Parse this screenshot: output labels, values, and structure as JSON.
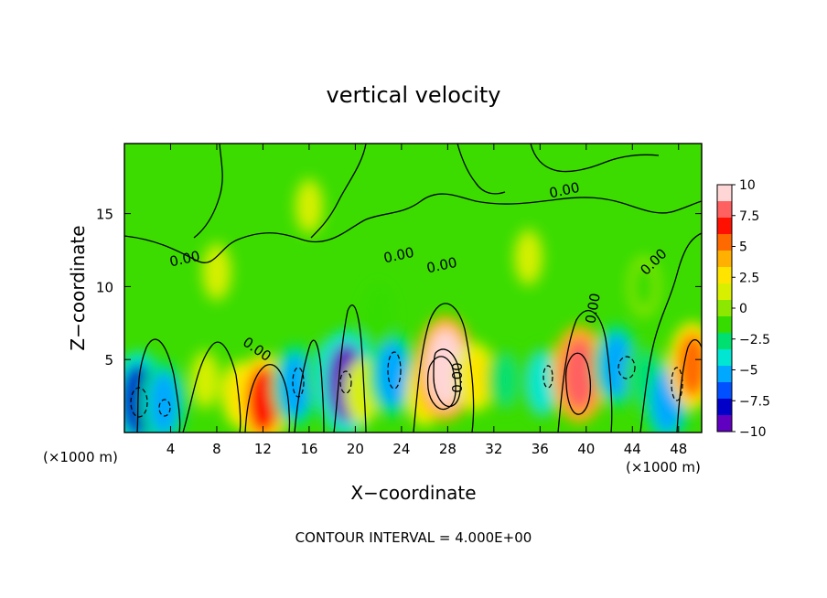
{
  "chart_data": {
    "type": "heatmap",
    "title": "vertical velocity",
    "xlabel": "X−coordinate",
    "ylabel": "Z−coordinate",
    "x_unit_left": "(×1000 m)",
    "x_unit_right": "(×1000 m)",
    "xlim": [
      0,
      50
    ],
    "ylim": [
      0,
      19.8
    ],
    "x_ticks": [
      "4",
      "8",
      "12",
      "16",
      "20",
      "24",
      "28",
      "32",
      "36",
      "40",
      "44",
      "48"
    ],
    "y_ticks": [
      "5",
      "10",
      "15"
    ],
    "colorbar": {
      "range": [
        -10,
        10
      ],
      "tick_labels": [
        "10",
        "7.5",
        "5",
        "2.5",
        "0",
        "−2.5",
        "−5",
        "−7.5",
        "−10"
      ],
      "colors": [
        "#ffd6d6",
        "#ff6060",
        "#ff1000",
        "#ff6a00",
        "#ffb000",
        "#ffe400",
        "#d8f000",
        "#8ce800",
        "#36dc00",
        "#00e070",
        "#00e6d2",
        "#00a8ff",
        "#0050ff",
        "#0000c8",
        "#6000c0"
      ]
    },
    "contour_labels": [
      "0.00",
      "0.00",
      "0.00",
      "0.00",
      "0.00",
      "0.00",
      "0.00",
      "0.00"
    ],
    "contour_interval": "CONTOUR INTERVAL = 4.000E+00",
    "cells": [
      {
        "x": 1.2,
        "z": 2.2,
        "w": -8.0
      },
      {
        "x": 3.4,
        "z": 2.0,
        "w": -5.5
      },
      {
        "x": 7.0,
        "z": 3.6,
        "w": 1.5
      },
      {
        "x": 10.0,
        "z": 2.6,
        "w": 2.5
      },
      {
        "x": 12.0,
        "z": 2.2,
        "w": 7.0
      },
      {
        "x": 14.8,
        "z": 3.2,
        "w": -5.5
      },
      {
        "x": 17.4,
        "z": 4.0,
        "w": -3.0
      },
      {
        "x": 19.2,
        "z": 3.4,
        "w": -9.5
      },
      {
        "x": 20.6,
        "z": 2.8,
        "w": 2.0
      },
      {
        "x": 23.2,
        "z": 4.0,
        "w": -6.0
      },
      {
        "x": 26.0,
        "z": 2.8,
        "w": 3.0
      },
      {
        "x": 27.8,
        "z": 4.4,
        "w": 9.5
      },
      {
        "x": 30.4,
        "z": 3.8,
        "w": 3.0
      },
      {
        "x": 33.0,
        "z": 3.6,
        "w": -2.5
      },
      {
        "x": 36.2,
        "z": 3.4,
        "w": -4.5
      },
      {
        "x": 39.4,
        "z": 4.0,
        "w": 8.0
      },
      {
        "x": 42.6,
        "z": 4.6,
        "w": -5.5
      },
      {
        "x": 45.0,
        "z": 3.8,
        "w": -3.0
      },
      {
        "x": 47.0,
        "z": 2.2,
        "w": -6.0
      },
      {
        "x": 49.2,
        "z": 4.6,
        "w": 6.0
      },
      {
        "x": 8.0,
        "z": 11.0,
        "w": 1.5
      },
      {
        "x": 22.0,
        "z": 8.0,
        "w": -2.0
      },
      {
        "x": 35.0,
        "z": 12.0,
        "w": 1.2
      },
      {
        "x": 45.0,
        "z": 10.0,
        "w": -1.2
      },
      {
        "x": 16.0,
        "z": 15.5,
        "w": 1.0
      }
    ]
  }
}
